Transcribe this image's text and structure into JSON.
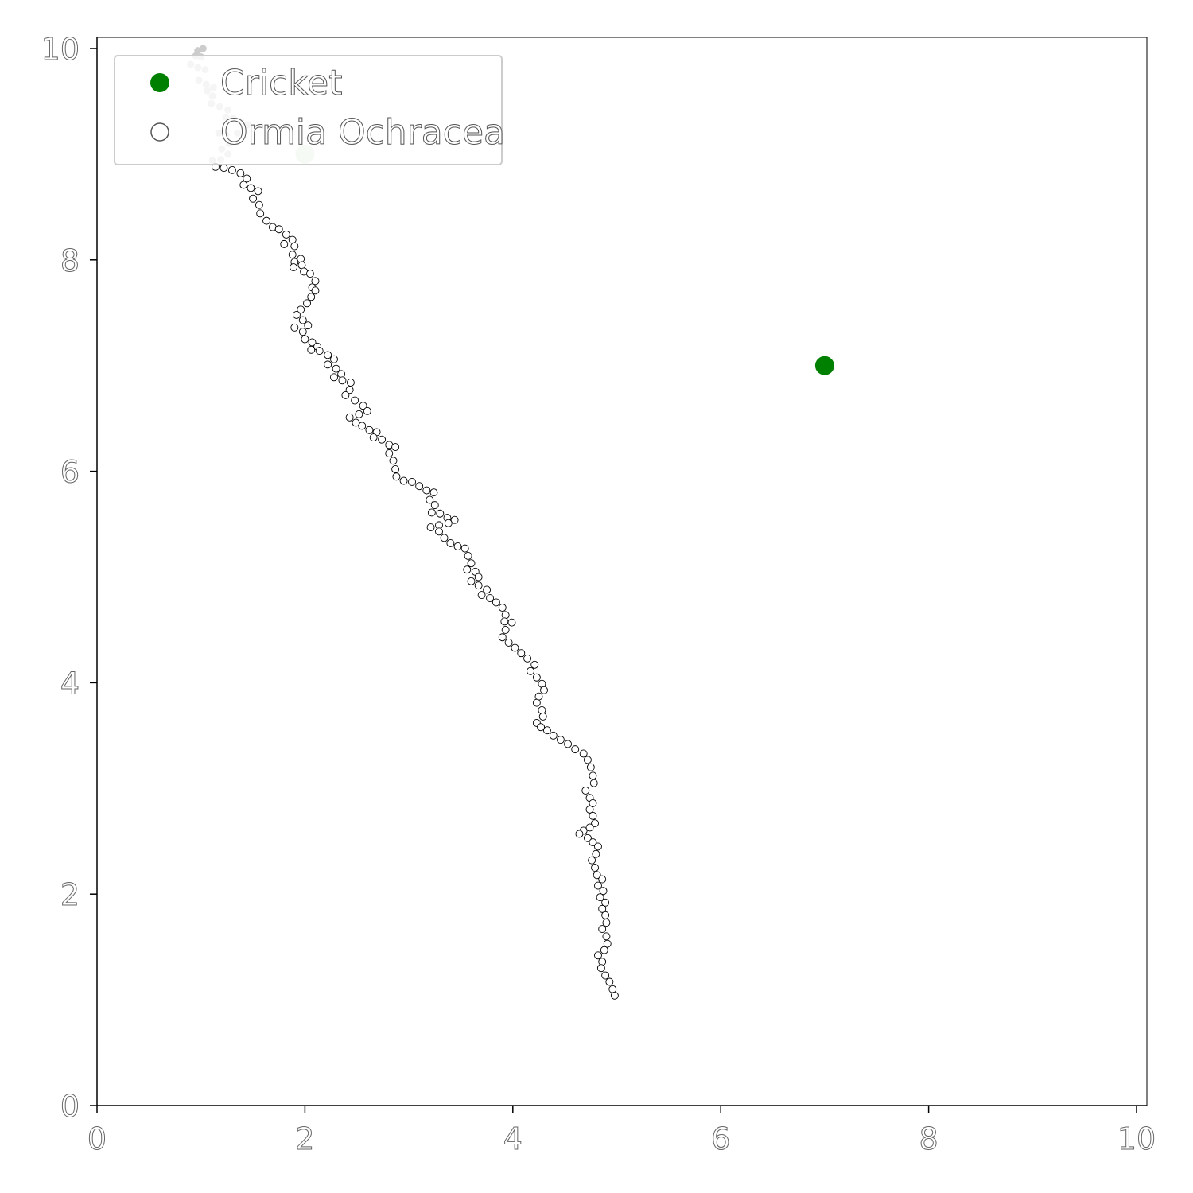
{
  "chart_data": {
    "type": "scatter",
    "xlim": [
      0,
      10
    ],
    "ylim": [
      0,
      10
    ],
    "x_ticks": [
      "0",
      "2",
      "4",
      "6",
      "8",
      "10"
    ],
    "y_ticks": [
      "0",
      "2",
      "4",
      "6",
      "8",
      "10"
    ],
    "grid": false,
    "legend_position": "top-left",
    "colors": {
      "cricket": "#008000",
      "start_marker": "#cce6cc",
      "trail_faded": "#cccccc",
      "trail_outline": "#000000",
      "frame": "#000000"
    },
    "legend": [
      {
        "label": "Cricket",
        "marker": "filled-circle"
      },
      {
        "label": "Ormia Ochracea",
        "marker": "open-circle"
      }
    ],
    "series": [
      {
        "name": "Cricket",
        "points": [
          [
            7.0,
            7.0
          ]
        ]
      },
      {
        "name": "Ormia Ochracea",
        "start": [
          2.0,
          9.0
        ],
        "faded_points": [
          [
            0.97,
            9.98
          ],
          [
            1.02,
            10.0
          ],
          [
            0.95,
            9.93
          ],
          [
            1.0,
            9.92
          ],
          [
            0.9,
            9.85
          ],
          [
            0.97,
            9.82
          ],
          [
            1.04,
            9.8
          ],
          [
            0.98,
            9.7
          ],
          [
            1.05,
            9.66
          ],
          [
            1.12,
            9.63
          ],
          [
            1.06,
            9.6
          ],
          [
            1.11,
            9.55
          ],
          [
            1.1,
            9.48
          ],
          [
            1.18,
            9.45
          ],
          [
            1.26,
            9.42
          ],
          [
            1.24,
            9.35
          ],
          [
            1.31,
            9.34
          ],
          [
            1.38,
            9.31
          ],
          [
            1.45,
            9.28
          ],
          [
            1.35,
            9.2
          ],
          [
            1.17,
            9.2
          ],
          [
            1.24,
            9.18
          ],
          [
            1.27,
            9.1
          ],
          [
            1.2,
            9.05
          ],
          [
            1.26,
            9.0
          ],
          [
            1.19,
            8.95
          ],
          [
            1.11,
            8.94
          ]
        ],
        "points": [
          [
            1.14,
            8.88
          ],
          [
            1.22,
            8.87
          ],
          [
            1.3,
            8.85
          ],
          [
            1.38,
            8.82
          ],
          [
            1.44,
            8.77
          ],
          [
            1.41,
            8.71
          ],
          [
            1.48,
            8.68
          ],
          [
            1.55,
            8.65
          ],
          [
            1.5,
            8.58
          ],
          [
            1.56,
            8.52
          ],
          [
            1.57,
            8.44
          ],
          [
            1.63,
            8.37
          ],
          [
            1.69,
            8.31
          ],
          [
            1.75,
            8.29
          ],
          [
            1.82,
            8.24
          ],
          [
            1.88,
            8.19
          ],
          [
            1.8,
            8.15
          ],
          [
            1.9,
            8.13
          ],
          [
            1.88,
            8.05
          ],
          [
            1.96,
            8.01
          ],
          [
            1.9,
            7.98
          ],
          [
            1.97,
            7.95
          ],
          [
            1.89,
            7.93
          ],
          [
            1.99,
            7.89
          ],
          [
            2.05,
            7.87
          ],
          [
            2.1,
            7.8
          ],
          [
            2.07,
            7.74
          ],
          [
            2.1,
            7.71
          ],
          [
            2.06,
            7.65
          ],
          [
            2.02,
            7.59
          ],
          [
            1.96,
            7.53
          ],
          [
            1.92,
            7.48
          ],
          [
            1.98,
            7.43
          ],
          [
            2.03,
            7.38
          ],
          [
            1.9,
            7.36
          ],
          [
            1.98,
            7.32
          ],
          [
            2.0,
            7.25
          ],
          [
            2.07,
            7.22
          ],
          [
            2.12,
            7.18
          ],
          [
            2.06,
            7.15
          ],
          [
            2.14,
            7.14
          ],
          [
            2.22,
            7.1
          ],
          [
            2.28,
            7.06
          ],
          [
            2.22,
            7.01
          ],
          [
            2.3,
            6.97
          ],
          [
            2.35,
            6.92
          ],
          [
            2.28,
            6.89
          ],
          [
            2.36,
            6.86
          ],
          [
            2.44,
            6.84
          ],
          [
            2.43,
            6.77
          ],
          [
            2.39,
            6.72
          ],
          [
            2.48,
            6.67
          ],
          [
            2.56,
            6.62
          ],
          [
            2.6,
            6.57
          ],
          [
            2.52,
            6.54
          ],
          [
            2.43,
            6.51
          ],
          [
            2.49,
            6.46
          ],
          [
            2.55,
            6.43
          ],
          [
            2.62,
            6.39
          ],
          [
            2.69,
            6.37
          ],
          [
            2.66,
            6.32
          ],
          [
            2.74,
            6.3
          ],
          [
            2.81,
            6.25
          ],
          [
            2.87,
            6.23
          ],
          [
            2.81,
            6.17
          ],
          [
            2.85,
            6.1
          ],
          [
            2.87,
            6.02
          ],
          [
            2.88,
            5.95
          ],
          [
            2.95,
            5.91
          ],
          [
            3.03,
            5.9
          ],
          [
            3.1,
            5.86
          ],
          [
            3.17,
            5.82
          ],
          [
            3.24,
            5.8
          ],
          [
            3.2,
            5.73
          ],
          [
            3.25,
            5.68
          ],
          [
            3.22,
            5.61
          ],
          [
            3.3,
            5.6
          ],
          [
            3.37,
            5.56
          ],
          [
            3.44,
            5.54
          ],
          [
            3.38,
            5.51
          ],
          [
            3.29,
            5.49
          ],
          [
            3.21,
            5.47
          ],
          [
            3.29,
            5.43
          ],
          [
            3.34,
            5.37
          ],
          [
            3.4,
            5.32
          ],
          [
            3.47,
            5.29
          ],
          [
            3.54,
            5.27
          ],
          [
            3.57,
            5.2
          ],
          [
            3.6,
            5.13
          ],
          [
            3.56,
            5.07
          ],
          [
            3.64,
            5.05
          ],
          [
            3.67,
            5.0
          ],
          [
            3.6,
            4.96
          ],
          [
            3.67,
            4.92
          ],
          [
            3.75,
            4.88
          ],
          [
            3.7,
            4.83
          ],
          [
            3.78,
            4.8
          ],
          [
            3.84,
            4.76
          ],
          [
            3.9,
            4.71
          ],
          [
            3.93,
            4.64
          ],
          [
            3.92,
            4.58
          ],
          [
            3.99,
            4.57
          ],
          [
            3.93,
            4.5
          ],
          [
            3.9,
            4.43
          ],
          [
            3.96,
            4.38
          ],
          [
            4.02,
            4.33
          ],
          [
            4.08,
            4.28
          ],
          [
            4.14,
            4.23
          ],
          [
            4.21,
            4.17
          ],
          [
            4.17,
            4.11
          ],
          [
            4.23,
            4.05
          ],
          [
            4.28,
            3.99
          ],
          [
            4.3,
            3.93
          ],
          [
            4.25,
            3.87
          ],
          [
            4.23,
            3.81
          ],
          [
            4.28,
            3.74
          ],
          [
            4.29,
            3.68
          ],
          [
            4.23,
            3.62
          ],
          [
            4.27,
            3.58
          ],
          [
            4.33,
            3.55
          ],
          [
            4.39,
            3.5
          ],
          [
            4.46,
            3.46
          ],
          [
            4.53,
            3.42
          ],
          [
            4.6,
            3.37
          ],
          [
            4.68,
            3.33
          ],
          [
            4.72,
            3.27
          ],
          [
            4.75,
            3.2
          ],
          [
            4.77,
            3.12
          ],
          [
            4.78,
            3.05
          ],
          [
            4.7,
            2.98
          ],
          [
            4.74,
            2.91
          ],
          [
            4.77,
            2.86
          ],
          [
            4.74,
            2.8
          ],
          [
            4.77,
            2.74
          ],
          [
            4.79,
            2.67
          ],
          [
            4.74,
            2.63
          ],
          [
            4.68,
            2.6
          ],
          [
            4.64,
            2.57
          ],
          [
            4.72,
            2.53
          ],
          [
            4.77,
            2.49
          ],
          [
            4.82,
            2.45
          ],
          [
            4.8,
            2.38
          ],
          [
            4.76,
            2.32
          ],
          [
            4.79,
            2.25
          ],
          [
            4.81,
            2.18
          ],
          [
            4.86,
            2.14
          ],
          [
            4.82,
            2.08
          ],
          [
            4.87,
            2.03
          ],
          [
            4.84,
            1.97
          ],
          [
            4.89,
            1.92
          ],
          [
            4.86,
            1.86
          ],
          [
            4.89,
            1.8
          ],
          [
            4.9,
            1.73
          ],
          [
            4.86,
            1.67
          ],
          [
            4.9,
            1.6
          ],
          [
            4.91,
            1.53
          ],
          [
            4.88,
            1.47
          ],
          [
            4.82,
            1.42
          ],
          [
            4.86,
            1.36
          ],
          [
            4.85,
            1.3
          ],
          [
            4.89,
            1.23
          ],
          [
            4.93,
            1.17
          ],
          [
            4.96,
            1.1
          ],
          [
            4.98,
            1.04
          ]
        ]
      }
    ]
  }
}
